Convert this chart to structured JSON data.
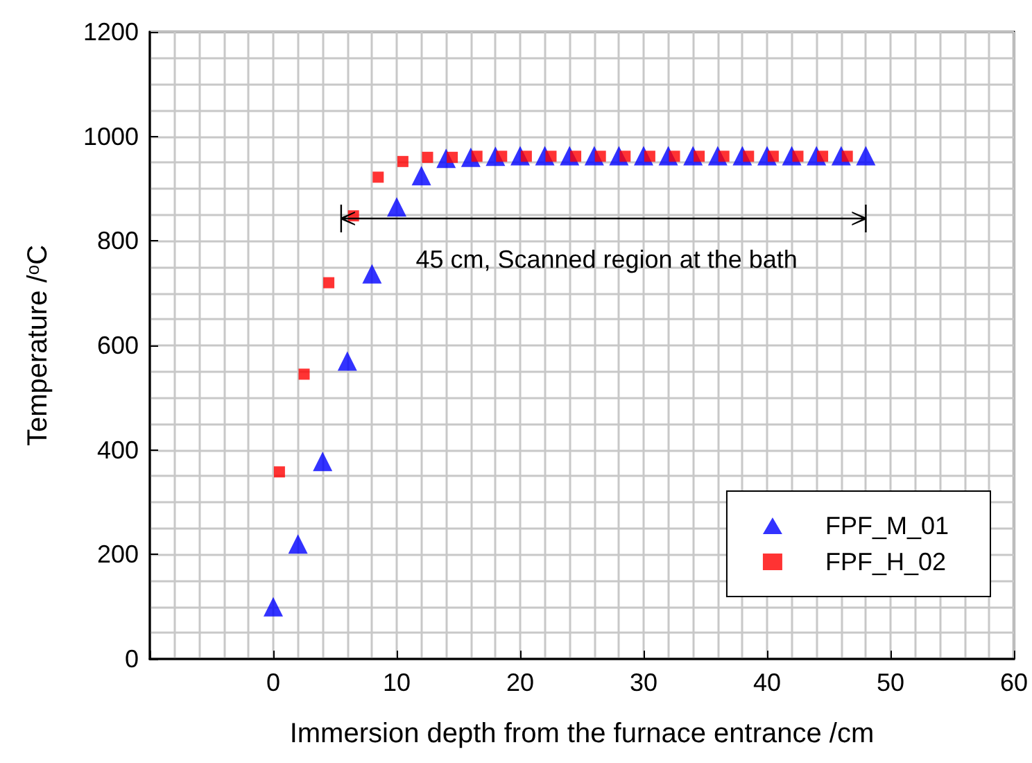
{
  "chart_data": {
    "type": "scatter",
    "xlabel": "Immersion depth from the furnace entrance /cm",
    "ylabel": "Temperature /$^{o}$C",
    "xlim": [
      -10,
      60
    ],
    "xticks": [
      {
        "value": -10,
        "label": null
      },
      0,
      10,
      20,
      30,
      40,
      50,
      60
    ],
    "ylim": [
      0,
      1200
    ],
    "yticks": [
      0,
      200,
      400,
      600,
      800,
      1000,
      1200
    ],
    "grid": true,
    "legend": "bottom right",
    "annotations": [
      "45 cm, Scanned region at the bath"
    ],
    "series": [
      {
        "name": "FPF_M_01",
        "color": "#0000ff",
        "marker": "triangle",
        "x": [
          0,
          2,
          4,
          6,
          8,
          10,
          12,
          14,
          16,
          18,
          20,
          22,
          24,
          26,
          28,
          30,
          32,
          34,
          36,
          38,
          40,
          42,
          44,
          46,
          48
        ],
        "values": [
          100,
          220,
          378,
          570,
          737,
          865,
          925,
          958,
          960,
          962,
          963,
          963,
          963,
          963,
          963,
          963,
          963,
          963,
          963,
          963,
          963,
          963,
          963,
          963,
          963
        ]
      },
      {
        "name": "FPF_H_02",
        "color": "#ff0000",
        "marker": "square",
        "x": [
          0.5,
          2.5,
          4.5,
          6.5,
          8.5,
          10.5,
          12.5,
          14.5,
          16.5,
          18.5,
          20.5,
          22.5,
          24.5,
          26.5,
          28.5,
          30.5,
          32.5,
          34.5,
          36.5,
          38.5,
          40.5,
          42.5,
          44.5,
          46.5
        ],
        "values": [
          358,
          545,
          720,
          848,
          922,
          952,
          960,
          960,
          962,
          962,
          962,
          962,
          962,
          962,
          962,
          962,
          962,
          962,
          962,
          962,
          962,
          962,
          962,
          962
        ]
      }
    ]
  }
}
